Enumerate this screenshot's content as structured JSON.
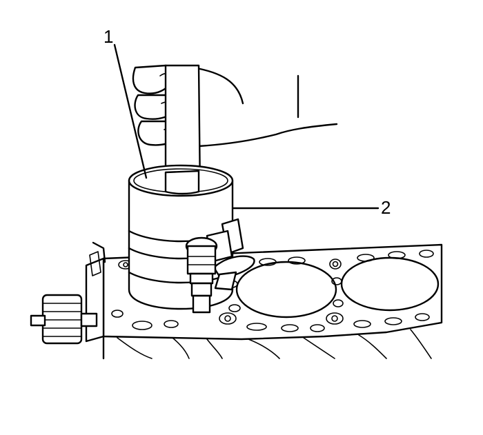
{
  "callouts": [
    {
      "id": "1",
      "label": "1"
    },
    {
      "id": "2",
      "label": "2"
    }
  ],
  "colors": {
    "line": "#000000",
    "background": "#ffffff"
  },
  "icons": [
    "hammer-handle",
    "hand",
    "piston-ring-compressor",
    "cylinder-head-gasket",
    "engine-block"
  ]
}
